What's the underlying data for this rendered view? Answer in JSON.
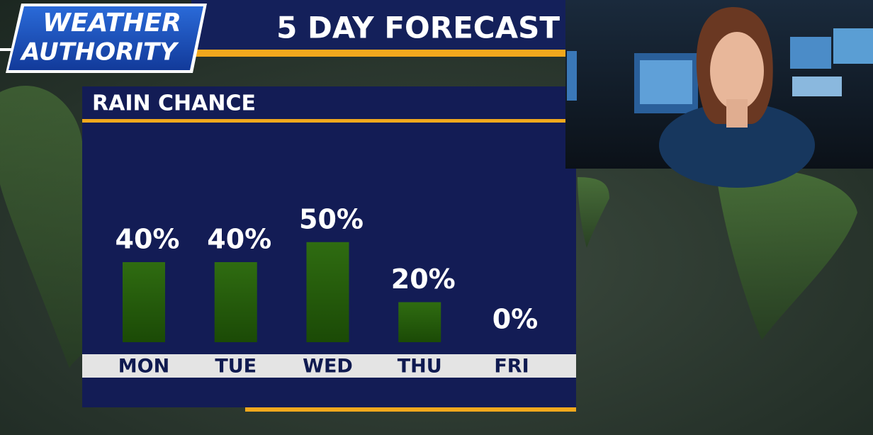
{
  "logo": {
    "line1": "WEATHER",
    "line2": "AUTHORITY"
  },
  "chart_data": {
    "type": "bar",
    "title": "5 DAY FORECAST",
    "subtitle": "RAIN CHANCE",
    "categories": [
      "MON",
      "TUE",
      "WED",
      "THU",
      "FRI"
    ],
    "values": [
      40,
      40,
      50,
      20,
      0
    ],
    "value_labels": [
      "40%",
      "40%",
      "50%",
      "20%",
      "0%"
    ],
    "color": "#2c6410"
  }
}
